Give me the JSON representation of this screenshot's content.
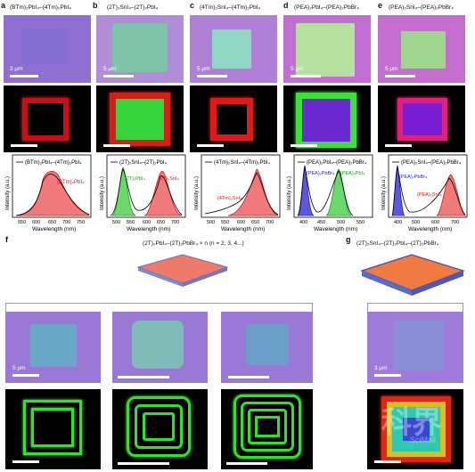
{
  "panels": [
    {
      "letter": "a",
      "title_main": "(BTm)",
      "title_html": "(BTm)₂PbI₄–(4Tm)₂PbI₄",
      "scale": "3 μm",
      "legend": "(BTm)₂PbI₄–(4Tm)₂PbI₄",
      "species": [
        "(BTm)₂PbI₄"
      ],
      "xticks": [
        "550",
        "600",
        "650",
        "700",
        "750"
      ]
    },
    {
      "letter": "b",
      "title_html": "(2T)₂SnI₄–(2T)₂PbI₄",
      "scale": "5 μm",
      "legend": "(2T)₂SnI₄–(2T)₂PbI₄",
      "species": [
        "(2T)₂PbI₄",
        "(2T)₂SnI₄"
      ],
      "xticks": [
        "500",
        "550",
        "600",
        "650",
        "700"
      ]
    },
    {
      "letter": "c",
      "title_html": "(4Tm)₂SnI₄–(4Tm)₂PbI₄",
      "scale": "5 μm",
      "legend": "(4Tm)₂SnI₄–(4Tm)₂PbI₄",
      "species": [
        "(4Tm)₂SnI₄"
      ],
      "xticks": [
        "500",
        "550",
        "600",
        "650",
        "700"
      ]
    },
    {
      "letter": "d",
      "title_html": "(PEA)₂PbI₄–(PEA)₂PbBr₄",
      "scale": "5 μm",
      "legend": "(PEA)₂PbI₄–(PEA)₂PbBr₄",
      "species": [
        "(PEA)₂PbBr₄",
        "(PEA)₂PbI₄"
      ],
      "xticks": [
        "400",
        "450",
        "500",
        "550"
      ]
    },
    {
      "letter": "e",
      "title_html": "(PEA)₂SnI₄–(PEA)₂PbBr₄",
      "scale": "5 μm",
      "legend": "(PEA)₂SnI₄–(PEA)₂PbBr₄",
      "species": [
        "(PEA)₂PbBr₄",
        "(PEA)₂SnI₄"
      ],
      "xticks": [
        "400",
        "500",
        "600",
        "700"
      ]
    }
  ],
  "axes": {
    "xlabel": "Wavelength (nm)",
    "ylabel": "Intensity (a.u.)"
  },
  "panel_f": {
    "letter": "f",
    "title": "(2T)₂PbI₄–(2T)₂PbBr₄ × n (n = 2, 3, 4...)",
    "scale": "5 μm"
  },
  "panel_g": {
    "letter": "g",
    "title": "(2T)₂SnI₄–(2T)₂PbI₄–(2T)₂PbBr₄",
    "scale": "3 μm"
  },
  "watermark": {
    "cn": "科界",
    "en": "SciMall"
  },
  "colors": {
    "bf_purple": "#8c6fcf",
    "red_pl": "#e0141a",
    "green_pl": "#2fe32a",
    "blue_pl": "#4338d6",
    "dark": "#000000"
  }
}
